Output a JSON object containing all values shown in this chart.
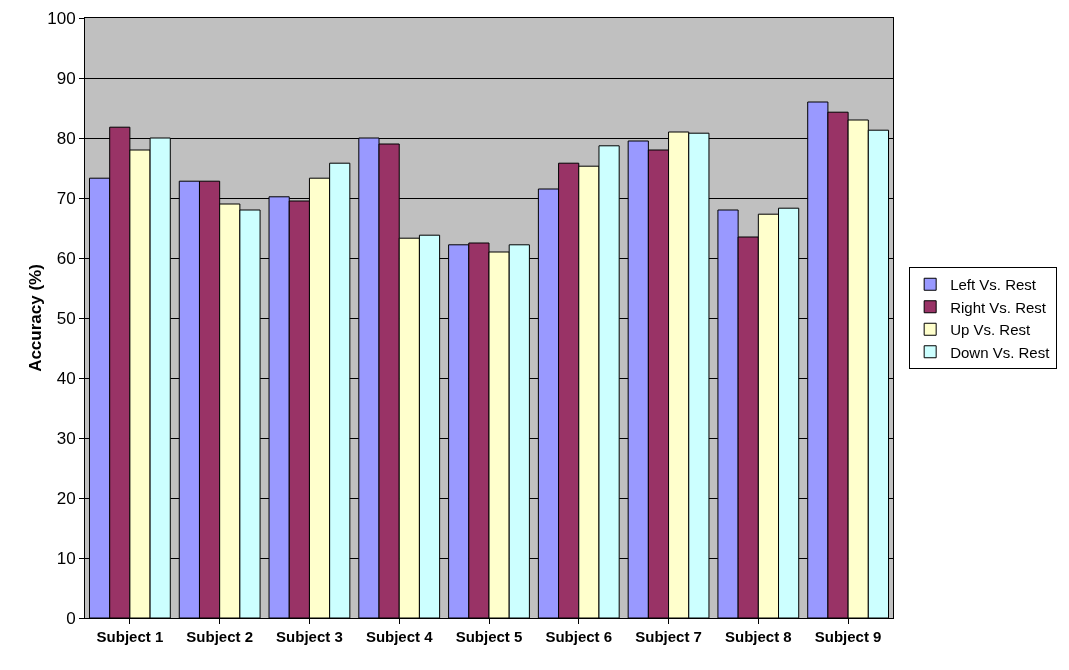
{
  "chart_data": {
    "type": "bar",
    "ylabel": "Accuracy (%)",
    "categories": [
      "Subject 1",
      "Subject 2",
      "Subject 3",
      "Subject 4",
      "Subject 5",
      "Subject 6",
      "Subject 7",
      "Subject 8",
      "Subject 9"
    ],
    "series": [
      {
        "name": "Left Vs. Rest",
        "color": "#9999ff",
        "values": [
          73.3,
          72.8,
          70.2,
          80,
          62.2,
          71.5,
          79.5,
          68,
          86
        ]
      },
      {
        "name": "Right Vs. Rest",
        "color": "#993366",
        "values": [
          81.8,
          72.8,
          69.5,
          79,
          62.5,
          75.8,
          78,
          63.5,
          84.3
        ]
      },
      {
        "name": "Up Vs. Rest",
        "color": "#ffffcc",
        "values": [
          78,
          69,
          73.3,
          63.3,
          61,
          75.3,
          81,
          67.3,
          83
        ]
      },
      {
        "name": "Down Vs. Rest",
        "color": "#ccffff",
        "values": [
          80,
          68,
          75.8,
          63.8,
          62.2,
          78.7,
          80.8,
          68.3,
          81.3
        ]
      }
    ],
    "ylim": [
      0,
      100
    ],
    "yticks": [
      0,
      10,
      20,
      30,
      40,
      50,
      60,
      70,
      80,
      90,
      100
    ],
    "grid": "y",
    "legend": "right"
  }
}
